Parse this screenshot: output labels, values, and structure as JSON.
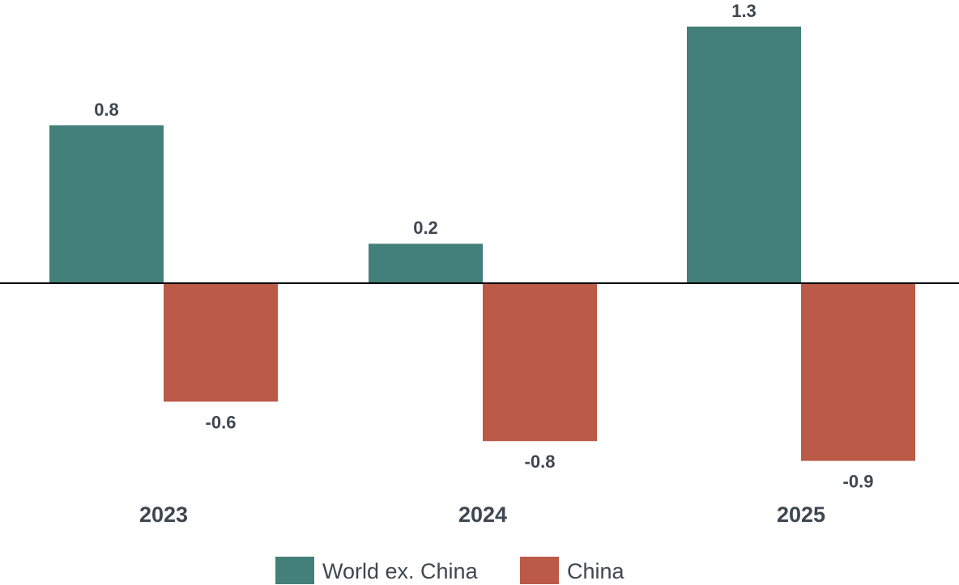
{
  "chart_data": {
    "type": "bar",
    "categories": [
      "2023",
      "2024",
      "2025"
    ],
    "series": [
      {
        "name": "World ex. China",
        "values": [
          0.8,
          0.2,
          1.3
        ],
        "color": "#44807a"
      },
      {
        "name": "China",
        "values": [
          -0.6,
          -0.8,
          -0.9
        ],
        "color": "#bb5a47"
      }
    ],
    "value_labels": [
      [
        "0.8",
        "0.2",
        "1.3"
      ],
      [
        "-0.6",
        "-0.8",
        "-0.9"
      ]
    ],
    "title": "",
    "xlabel": "",
    "ylabel": "",
    "ylim": [
      -1.0,
      1.4
    ],
    "grid": false,
    "legend_position": "bottom-center",
    "zero_line": true
  }
}
